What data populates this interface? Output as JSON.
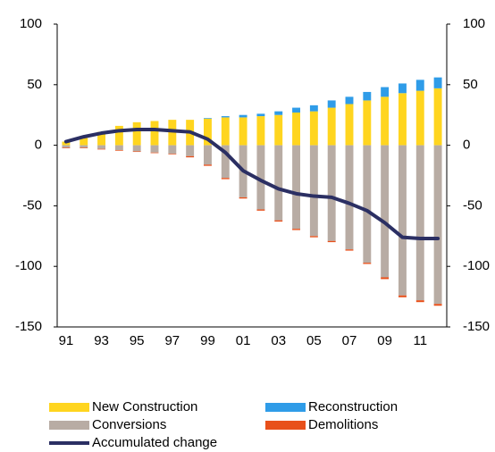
{
  "chart_data": {
    "type": "bar",
    "categories": [
      "91",
      null,
      "93",
      null,
      "95",
      null,
      "97",
      null,
      "99",
      null,
      "01",
      null,
      "03",
      null,
      "05",
      null,
      "07",
      null,
      "09",
      null,
      "11",
      null
    ],
    "series": [
      {
        "name": "New Construction",
        "color": "#ffd51f",
        "values": [
          3,
          6,
          11,
          16,
          19,
          20,
          21,
          21,
          22,
          23,
          23,
          24,
          25,
          27,
          28,
          31,
          34,
          37,
          40,
          43,
          45,
          47
        ]
      },
      {
        "name": "Reconstruction",
        "color": "#2f9ce8",
        "values": [
          0,
          0,
          0,
          0,
          0,
          0,
          0,
          0,
          0.5,
          1,
          2,
          2,
          3,
          4,
          5,
          6,
          6,
          7,
          8,
          8,
          9,
          9
        ]
      },
      {
        "name": "Conversions",
        "color": "#b8aca4",
        "values": [
          -2,
          -2,
          -3,
          -4,
          -5,
          -6,
          -7,
          -9,
          -16,
          -27,
          -43,
          -53,
          -62,
          -69,
          -75,
          -79,
          -86,
          -97,
          -109,
          -124,
          -128,
          -131
        ]
      },
      {
        "name": "Demolitions",
        "color": "#e8501a",
        "values": [
          -0.5,
          -0.5,
          -0.5,
          -0.5,
          -0.5,
          -0.5,
          -0.5,
          -1,
          -1,
          -1,
          -1,
          -1,
          -1,
          -1,
          -1,
          -1,
          -1,
          -1,
          -1.5,
          -1.5,
          -1.5,
          -1.5
        ]
      },
      {
        "name": "Accumulated change",
        "color": "#2b2f63",
        "type": "line",
        "values": [
          3,
          7,
          10,
          12,
          13,
          13,
          12,
          11,
          5,
          -6,
          -21,
          -29,
          -36,
          -40,
          -42,
          -43,
          -48,
          -54,
          -64,
          -76,
          -77,
          -77
        ]
      }
    ],
    "ylim": [
      -150,
      100
    ],
    "yticks": [
      -150,
      -100,
      -50,
      0,
      50,
      100
    ],
    "y2lim": [
      -150,
      100
    ],
    "y2ticks": [
      -150,
      -100,
      -50,
      0,
      50,
      100
    ],
    "legend": "bottom"
  }
}
